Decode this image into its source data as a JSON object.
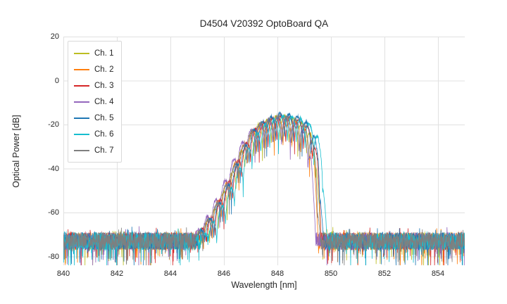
{
  "chart_data": {
    "type": "line",
    "title": "D4504 V20392 OptoBoard QA",
    "xlabel": "Wavelength [nm]",
    "ylabel": "Optical Power [dB]",
    "xlim": [
      840,
      855
    ],
    "ylim": [
      -84,
      20
    ],
    "xticks": [
      840,
      842,
      844,
      846,
      848,
      850,
      852,
      854
    ],
    "yticks": [
      20,
      0,
      -20,
      -40,
      -60,
      -80
    ],
    "grid": true,
    "legend_position": "upper left",
    "noise_floor_db": -73,
    "noise_amplitude_db": 8,
    "mode_spacing_nm": 0.33,
    "ripple_depth_db": 17,
    "envelope": [
      [
        840.0,
        -95
      ],
      [
        844.5,
        -80
      ],
      [
        845.0,
        -70
      ],
      [
        845.5,
        -62
      ],
      [
        846.0,
        -50
      ],
      [
        846.3,
        -42
      ],
      [
        846.6,
        -33
      ],
      [
        847.0,
        -24
      ],
      [
        847.3,
        -20
      ],
      [
        847.6,
        -18
      ],
      [
        848.0,
        -16
      ],
      [
        848.4,
        -16.5
      ],
      [
        848.8,
        -18
      ],
      [
        849.1,
        -21
      ],
      [
        849.3,
        -26
      ],
      [
        849.45,
        -35
      ],
      [
        849.55,
        -55
      ],
      [
        849.65,
        -75
      ],
      [
        850.0,
        -95
      ],
      [
        855.0,
        -95
      ]
    ],
    "series": [
      {
        "name": "Ch. 1",
        "color": "#bcbd22",
        "shift_nm": 0.0,
        "phase_nm": 0.0,
        "level_db": 0,
        "seed": 11
      },
      {
        "name": "Ch. 2",
        "color": "#ff7f0e",
        "shift_nm": -0.08,
        "phase_nm": 0.11,
        "level_db": -1,
        "seed": 22
      },
      {
        "name": "Ch. 3",
        "color": "#d62728",
        "shift_nm": 0.04,
        "phase_nm": 0.21,
        "level_db": 0,
        "seed": 33
      },
      {
        "name": "Ch. 4",
        "color": "#9467bd",
        "shift_nm": -0.18,
        "phase_nm": 0.05,
        "level_db": -1,
        "seed": 44
      },
      {
        "name": "Ch. 5",
        "color": "#1f77b4",
        "shift_nm": 0.08,
        "phase_nm": 0.16,
        "level_db": 1,
        "seed": 55
      },
      {
        "name": "Ch. 6",
        "color": "#17becf",
        "shift_nm": 0.22,
        "phase_nm": 0.27,
        "level_db": 0,
        "seed": 66
      },
      {
        "name": "Ch. 7",
        "color": "#7f7f7f",
        "shift_nm": -0.03,
        "phase_nm": 0.08,
        "level_db": 0,
        "seed": 77
      }
    ],
    "grid_color": "#e1e1e1"
  }
}
